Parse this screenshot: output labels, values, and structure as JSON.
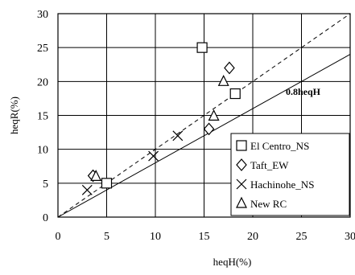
{
  "chart_data": {
    "type": "scatter",
    "xlabel": "heqH(%)",
    "ylabel": "heqR(%)",
    "xlim": [
      0,
      30
    ],
    "ylim": [
      0,
      30
    ],
    "xticks": [
      0,
      5,
      10,
      15,
      20,
      25,
      30
    ],
    "yticks": [
      0,
      5,
      10,
      15,
      20,
      25,
      30
    ],
    "grid": true,
    "legend_position": "bottom-right",
    "annotation": "0.8heqH",
    "reference_lines": [
      {
        "style": "dashed",
        "slope": 1.0
      },
      {
        "style": "solid",
        "slope": 0.8
      }
    ],
    "series": [
      {
        "name": "El Centro_NS",
        "marker": "square",
        "points": [
          [
            5.0,
            5.0
          ],
          [
            14.8,
            25.0
          ],
          [
            18.2,
            18.2
          ]
        ]
      },
      {
        "name": "Taft_EW",
        "marker": "diamond",
        "points": [
          [
            3.6,
            6.1
          ],
          [
            15.5,
            13.0
          ],
          [
            17.6,
            22.0
          ]
        ]
      },
      {
        "name": "Hachinohe_NS",
        "marker": "cross",
        "points": [
          [
            3.0,
            4.0
          ],
          [
            9.8,
            9.0
          ],
          [
            12.3,
            12.0
          ]
        ]
      },
      {
        "name": "New RC",
        "marker": "triangle",
        "points": [
          [
            3.9,
            6.0
          ],
          [
            16.0,
            14.9
          ],
          [
            17.0,
            20.0
          ]
        ]
      }
    ]
  }
}
